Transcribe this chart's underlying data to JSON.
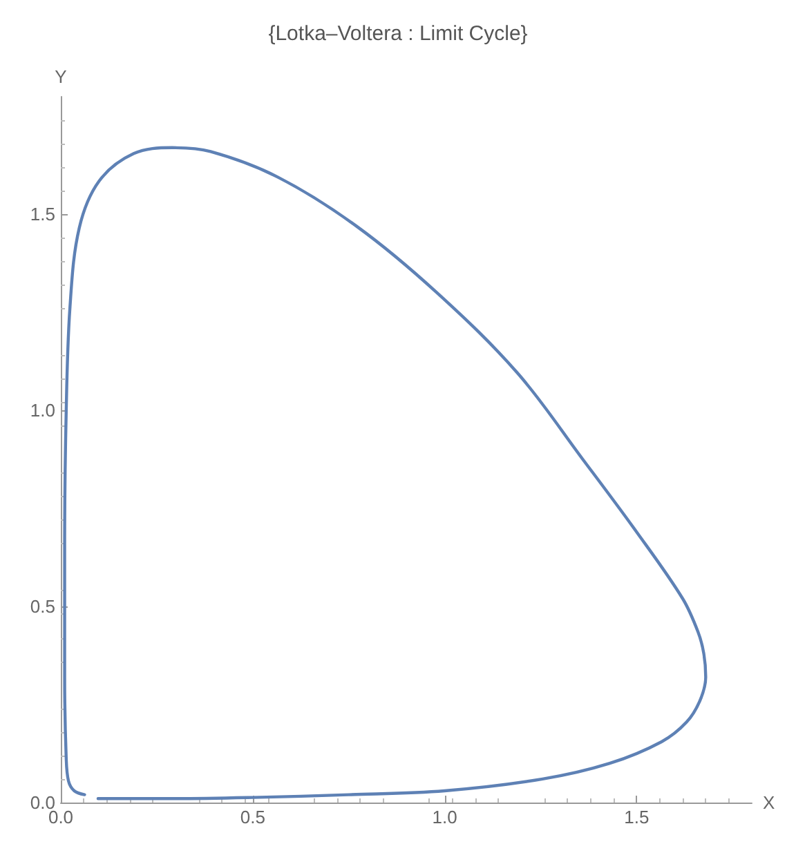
{
  "chart_data": {
    "type": "line",
    "title": "{Lotka–Voltera : Limit Cycle}",
    "xlabel": "X",
    "ylabel": "Y",
    "series": [
      {
        "color": "#5e81b5",
        "x": [
          0.097,
          0.3,
          0.5,
          0.75,
          1.0,
          1.255,
          1.43,
          1.565,
          1.63,
          1.665,
          1.68,
          1.675,
          1.66,
          1.62,
          1.5,
          1.36,
          1.19,
          0.98,
          0.77,
          0.565,
          0.39,
          0.29,
          0.19,
          0.1,
          0.048,
          0.024,
          0.014,
          0.01,
          0.01,
          0.014,
          0.02,
          0.035,
          0.062
        ],
        "values": [
          0.01,
          0.01,
          0.013,
          0.02,
          0.03,
          0.06,
          0.1,
          0.155,
          0.205,
          0.26,
          0.32,
          0.38,
          0.435,
          0.52,
          0.69,
          0.875,
          1.095,
          1.3,
          1.47,
          1.595,
          1.66,
          1.67,
          1.655,
          1.585,
          1.465,
          1.265,
          0.995,
          0.655,
          0.32,
          0.115,
          0.055,
          0.03,
          0.02
        ]
      }
    ],
    "xlim": [
      0,
      1.8
    ],
    "ylim": [
      0,
      1.8
    ],
    "xticks": [
      {
        "value": 0,
        "label": "0.0"
      },
      0.5,
      {
        "value": 1,
        "label": "1.0"
      },
      1.5
    ],
    "yticks": [
      {
        "value": 0,
        "label": "0.0"
      },
      0.5,
      {
        "value": 1,
        "label": "1.0"
      },
      1.5
    ],
    "grid": false,
    "marker": "none",
    "line_style": "solid"
  }
}
